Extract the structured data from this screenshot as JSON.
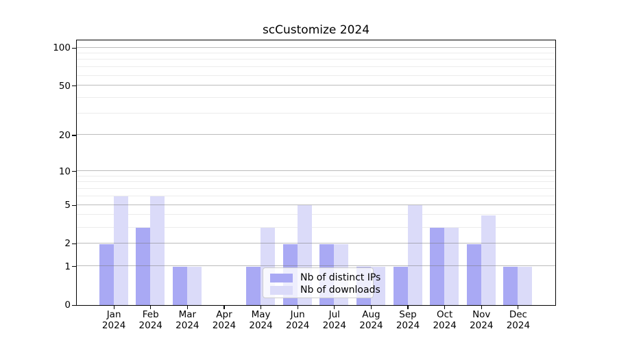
{
  "title": "scCustomize 2024",
  "colors": {
    "ips": "#a9a9f4",
    "downloads": "#dbdbf9",
    "grid_major": "rgba(120,120,120,0.5)",
    "grid_minor": "#ececec",
    "spine": "#000000",
    "legend_border": "#cccccc",
    "legend_bg": "rgba(255,255,255,0.8)",
    "text": "#000000"
  },
  "axes": {
    "y_scale": "log1p",
    "y_major_ticks": [
      0,
      1,
      2,
      5,
      10,
      20,
      50,
      100
    ],
    "y_minor_gridlines": [
      3,
      4,
      6,
      7,
      8,
      9,
      30,
      40,
      60,
      70,
      80,
      90
    ],
    "y_max": 100
  },
  "legend": {
    "items": [
      {
        "label": "Nb of distinct IPs",
        "color_key": "ips"
      },
      {
        "label": "Nb of downloads",
        "color_key": "downloads"
      }
    ]
  },
  "chart_data": {
    "type": "bar",
    "title": "scCustomize 2024",
    "categories": [
      "Jan",
      "Feb",
      "Mar",
      "Apr",
      "May",
      "Jun",
      "Jul",
      "Aug",
      "Sep",
      "Oct",
      "Nov",
      "Dec"
    ],
    "year_label": "2024",
    "series": [
      {
        "name": "Nb of distinct IPs",
        "values": [
          2,
          3,
          1,
          0,
          1,
          2,
          2,
          1,
          1,
          3,
          2,
          1
        ]
      },
      {
        "name": "Nb of downloads",
        "values": [
          6,
          6,
          1,
          0,
          3,
          5,
          2,
          1,
          5,
          3,
          4,
          1
        ]
      }
    ],
    "xlabel": "",
    "ylabel": "",
    "yticks": [
      0,
      1,
      2,
      5,
      10,
      20,
      50,
      100
    ],
    "ylim": [
      0,
      115
    ],
    "grid": "horizontal, major and minor",
    "legend_position": "lower center-left inside plot"
  }
}
